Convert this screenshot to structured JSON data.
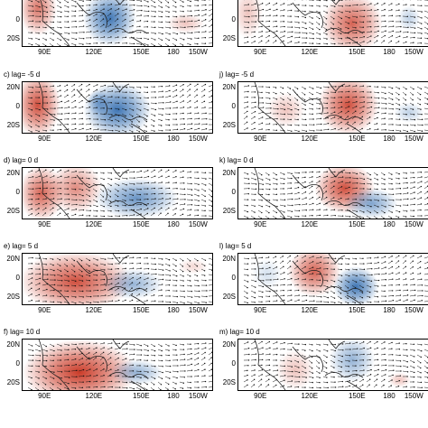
{
  "colors": {
    "positive": "#c8321e",
    "negative": "#1f5fa8",
    "coast": "#222222",
    "arrow": "#111111"
  },
  "axes": {
    "x_ticks": [
      "90E",
      "120E",
      "150E",
      "180",
      "150W"
    ],
    "y_ticks": [
      "20N",
      "0",
      "20S"
    ]
  },
  "left": [
    {
      "id": "b",
      "title": "",
      "label": ""
    },
    {
      "id": "c",
      "title": "c) lag= -5 d"
    },
    {
      "id": "d",
      "title": "d) lag=  0 d"
    },
    {
      "id": "e",
      "title": "e) lag=  5 d"
    },
    {
      "id": "f",
      "title": "f) lag= 10 d"
    }
  ],
  "right": [
    {
      "id": "i",
      "title": ""
    },
    {
      "id": "j",
      "title": "j) lag= -5 d"
    },
    {
      "id": "k",
      "title": "k) lag=  0 d"
    },
    {
      "id": "l",
      "title": "l) lag=  5 d"
    },
    {
      "id": "m",
      "title": "m) lag= 10 d"
    }
  ]
}
